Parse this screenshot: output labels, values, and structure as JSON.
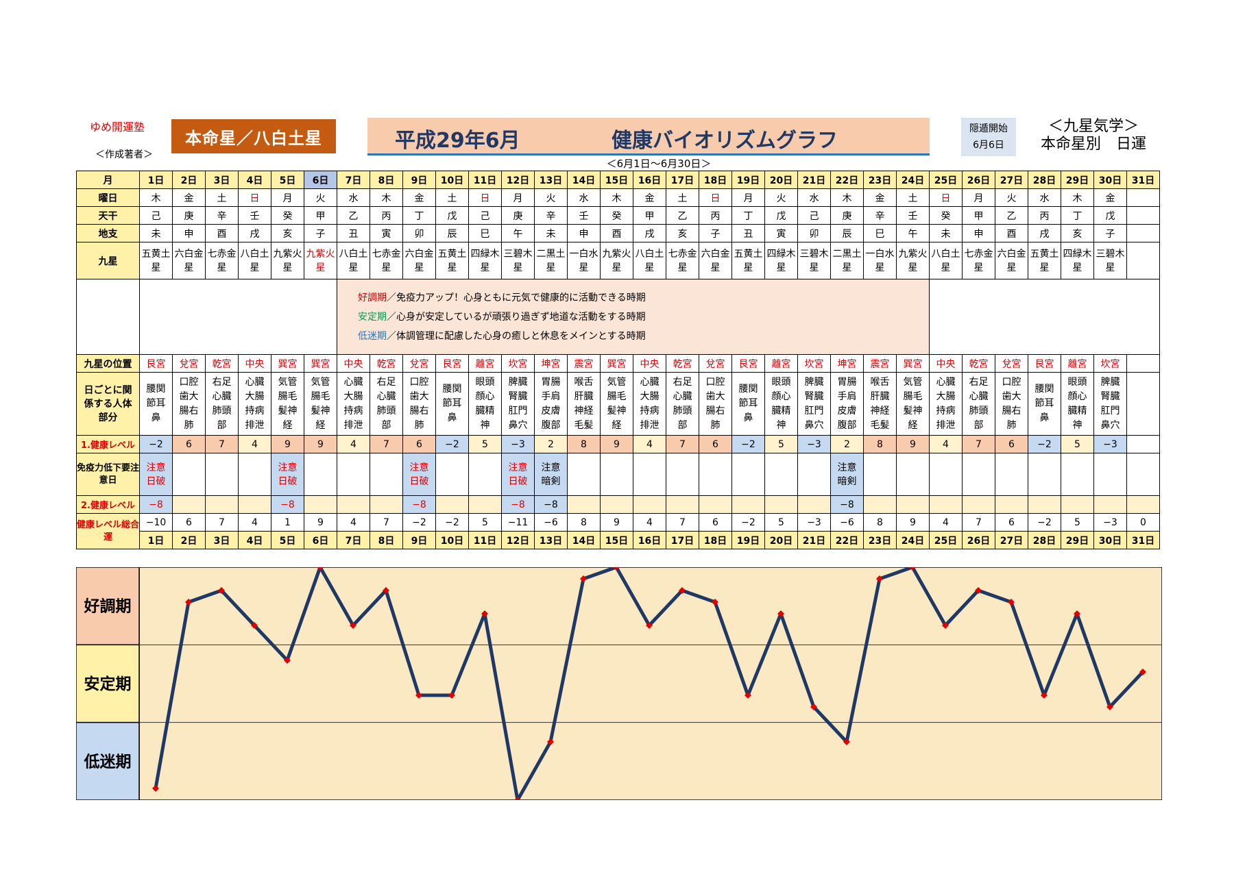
{
  "header": {
    "brand": "ゆめ開運塾",
    "author": "＜作成著者＞",
    "honmei": "本命星／八白土星",
    "title_date": "平成29年6月",
    "title_main": "健康バイオリズムグラフ",
    "period": "＜6月1日～6月30日＞",
    "inton_label": "隠遁開始",
    "inton_date": "6月6日",
    "school_line1": "＜九星気学＞",
    "school_line2": "本命星別　日運"
  },
  "row_labels": {
    "month": "月",
    "weekday": "曜日",
    "tenkan": "天干",
    "chishi": "地支",
    "kyusei": "九星",
    "position": "九星の位置",
    "body": "日ごとに関係する人体部分",
    "level1": "1.健康レベル",
    "warn": "免疫力低下要注意日",
    "level2": "2.健康レベル",
    "total": "健康レベル総合運"
  },
  "legend": [
    {
      "term": "好調期",
      "text": "／免疫力アップ！心身ともに元気で健康的に活動できる時期"
    },
    {
      "term": "安定期",
      "text": "／心身が安定しているが頑張り過ぎず地道な活動をする時期"
    },
    {
      "term": "低迷期",
      "text": "／体調管理に配慮した心身の癒しと休息をメインとする時期"
    }
  ],
  "days": [
    {
      "day": "1日",
      "weekday": "木",
      "tenkan": "己",
      "chishi": "未",
      "star": "五黄土星",
      "pos": "艮宮",
      "body": "腰関節耳鼻",
      "lvl1": "−2",
      "lvl1c": "low",
      "warn": "注意日破",
      "lvl2": "−8",
      "total": "−10"
    },
    {
      "day": "2日",
      "weekday": "金",
      "tenkan": "庚",
      "chishi": "申",
      "star": "六白金星",
      "pos": "兌宮",
      "body": "口腔歯大腸右肺",
      "lvl1": "6",
      "lvl1c": "good",
      "warn": "",
      "lvl2": "",
      "total": "6"
    },
    {
      "day": "3日",
      "weekday": "土",
      "tenkan": "辛",
      "chishi": "酉",
      "star": "七赤金星",
      "pos": "乾宮",
      "body": "右足心臓肺頭部",
      "lvl1": "7",
      "lvl1c": "good",
      "warn": "",
      "lvl2": "",
      "total": "7"
    },
    {
      "day": "4日",
      "weekday": "日",
      "tenkan": "壬",
      "chishi": "戌",
      "star": "八白土星",
      "pos": "中央",
      "body": "心臓大腸持病排泄",
      "lvl1": "4",
      "lvl1c": "mid",
      "warn": "",
      "lvl2": "",
      "total": "4"
    },
    {
      "day": "5日",
      "weekday": "月",
      "tenkan": "癸",
      "chishi": "亥",
      "star": "九紫火星",
      "pos": "巽宮",
      "body": "気管腸毛髪神経",
      "lvl1": "9",
      "lvl1c": "good",
      "warn": "注意日破",
      "lvl2": "−8",
      "total": "1"
    },
    {
      "day": "6日",
      "weekday": "火",
      "tenkan": "甲",
      "chishi": "子",
      "star": "九紫火星",
      "pos": "巽宮",
      "body": "気管腸毛髪神経",
      "lvl1": "9",
      "lvl1c": "good",
      "warn": "",
      "lvl2": "",
      "total": "9"
    },
    {
      "day": "7日",
      "weekday": "水",
      "tenkan": "乙",
      "chishi": "丑",
      "star": "八白土星",
      "pos": "中央",
      "body": "心臓大腸持病排泄",
      "lvl1": "4",
      "lvl1c": "mid",
      "warn": "",
      "lvl2": "",
      "total": "4"
    },
    {
      "day": "8日",
      "weekday": "木",
      "tenkan": "丙",
      "chishi": "寅",
      "star": "七赤金星",
      "pos": "乾宮",
      "body": "右足心臓肺頭部",
      "lvl1": "7",
      "lvl1c": "good",
      "warn": "",
      "lvl2": "",
      "total": "7"
    },
    {
      "day": "9日",
      "weekday": "金",
      "tenkan": "丁",
      "chishi": "卯",
      "star": "六白金星",
      "pos": "兌宮",
      "body": "口腔歯大腸右肺",
      "lvl1": "6",
      "lvl1c": "good",
      "warn": "注意日破",
      "lvl2": "−8",
      "total": "−2"
    },
    {
      "day": "10日",
      "weekday": "土",
      "tenkan": "戊",
      "chishi": "辰",
      "star": "五黄土星",
      "pos": "艮宮",
      "body": "腰関節耳鼻",
      "lvl1": "−2",
      "lvl1c": "low",
      "warn": "",
      "lvl2": "",
      "total": "−2"
    },
    {
      "day": "11日",
      "weekday": "日",
      "tenkan": "己",
      "chishi": "巳",
      "star": "四緑木星",
      "pos": "離宮",
      "body": "眼頭顔心臓精神",
      "lvl1": "5",
      "lvl1c": "mid",
      "warn": "",
      "lvl2": "",
      "total": "5"
    },
    {
      "day": "12日",
      "weekday": "月",
      "tenkan": "庚",
      "chishi": "午",
      "star": "三碧木星",
      "pos": "坎宮",
      "body": "脾臓腎臓肛門鼻穴",
      "lvl1": "−3",
      "lvl1c": "low",
      "warn": "注意日破",
      "lvl2": "−8",
      "total": "−11"
    },
    {
      "day": "13日",
      "weekday": "火",
      "tenkan": "辛",
      "chishi": "未",
      "star": "二黒土星",
      "pos": "坤宮",
      "body": "胃腸手肩皮膚腹部",
      "lvl1": "2",
      "lvl1c": "mid",
      "warn": "注意暗剣",
      "lvl2": "−8",
      "total": "−6"
    },
    {
      "day": "14日",
      "weekday": "水",
      "tenkan": "壬",
      "chishi": "申",
      "star": "一白水星",
      "pos": "震宮",
      "body": "喉舌肝臓神経毛髪",
      "lvl1": "8",
      "lvl1c": "good",
      "warn": "",
      "lvl2": "",
      "total": "8"
    },
    {
      "day": "15日",
      "weekday": "木",
      "tenkan": "癸",
      "chishi": "酉",
      "star": "九紫火星",
      "pos": "巽宮",
      "body": "気管腸毛髪神経",
      "lvl1": "9",
      "lvl1c": "good",
      "warn": "",
      "lvl2": "",
      "total": "9"
    },
    {
      "day": "16日",
      "weekday": "金",
      "tenkan": "甲",
      "chishi": "戌",
      "star": "八白土星",
      "pos": "中央",
      "body": "心臓大腸持病排泄",
      "lvl1": "4",
      "lvl1c": "mid",
      "warn": "",
      "lvl2": "",
      "total": "4"
    },
    {
      "day": "17日",
      "weekday": "土",
      "tenkan": "乙",
      "chishi": "亥",
      "star": "七赤金星",
      "pos": "乾宮",
      "body": "右足心臓肺頭部",
      "lvl1": "7",
      "lvl1c": "good",
      "warn": "",
      "lvl2": "",
      "total": "7"
    },
    {
      "day": "18日",
      "weekday": "日",
      "tenkan": "丙",
      "chishi": "子",
      "star": "六白金星",
      "pos": "兌宮",
      "body": "口腔歯大腸右肺",
      "lvl1": "6",
      "lvl1c": "good",
      "warn": "",
      "lvl2": "",
      "total": "6"
    },
    {
      "day": "19日",
      "weekday": "月",
      "tenkan": "丁",
      "chishi": "丑",
      "star": "五黄土星",
      "pos": "艮宮",
      "body": "腰関節耳鼻",
      "lvl1": "−2",
      "lvl1c": "low",
      "warn": "",
      "lvl2": "",
      "total": "−2"
    },
    {
      "day": "20日",
      "weekday": "火",
      "tenkan": "戊",
      "chishi": "寅",
      "star": "四緑木星",
      "pos": "離宮",
      "body": "眼頭顔心臓精神",
      "lvl1": "5",
      "lvl1c": "mid",
      "warn": "",
      "lvl2": "",
      "total": "5"
    },
    {
      "day": "21日",
      "weekday": "水",
      "tenkan": "己",
      "chishi": "卯",
      "star": "三碧木星",
      "pos": "坎宮",
      "body": "脾臓腎臓肛門鼻穴",
      "lvl1": "−3",
      "lvl1c": "low",
      "warn": "",
      "lvl2": "",
      "total": "−3"
    },
    {
      "day": "22日",
      "weekday": "木",
      "tenkan": "庚",
      "chishi": "辰",
      "star": "二黒土星",
      "pos": "坤宮",
      "body": "胃腸手肩皮膚腹部",
      "lvl1": "2",
      "lvl1c": "mid",
      "warn": "注意暗剣",
      "lvl2": "−8",
      "total": "−6"
    },
    {
      "day": "23日",
      "weekday": "金",
      "tenkan": "辛",
      "chishi": "巳",
      "star": "一白水星",
      "pos": "震宮",
      "body": "喉舌肝臓神経毛髪",
      "lvl1": "8",
      "lvl1c": "good",
      "warn": "",
      "lvl2": "",
      "total": "8"
    },
    {
      "day": "24日",
      "weekday": "土",
      "tenkan": "壬",
      "chishi": "午",
      "star": "九紫火星",
      "pos": "巽宮",
      "body": "気管腸毛髪神経",
      "lvl1": "9",
      "lvl1c": "good",
      "warn": "",
      "lvl2": "",
      "total": "9"
    },
    {
      "day": "25日",
      "weekday": "日",
      "tenkan": "癸",
      "chishi": "未",
      "star": "八白土星",
      "pos": "中央",
      "body": "心臓大腸持病排泄",
      "lvl1": "4",
      "lvl1c": "mid",
      "warn": "",
      "lvl2": "",
      "total": "4"
    },
    {
      "day": "26日",
      "weekday": "月",
      "tenkan": "甲",
      "chishi": "申",
      "star": "七赤金星",
      "pos": "乾宮",
      "body": "右足心臓肺頭部",
      "lvl1": "7",
      "lvl1c": "good",
      "warn": "",
      "lvl2": "",
      "total": "7"
    },
    {
      "day": "27日",
      "weekday": "火",
      "tenkan": "乙",
      "chishi": "酉",
      "star": "六白金星",
      "pos": "兌宮",
      "body": "口腔歯大腸右肺",
      "lvl1": "6",
      "lvl1c": "good",
      "warn": "",
      "lvl2": "",
      "total": "6"
    },
    {
      "day": "28日",
      "weekday": "水",
      "tenkan": "丙",
      "chishi": "戌",
      "star": "五黄土星",
      "pos": "艮宮",
      "body": "腰関節耳鼻",
      "lvl1": "−2",
      "lvl1c": "low",
      "warn": "",
      "lvl2": "",
      "total": "−2"
    },
    {
      "day": "29日",
      "weekday": "木",
      "tenkan": "丁",
      "chishi": "亥",
      "star": "四緑木星",
      "pos": "離宮",
      "body": "眼頭顔心臓精神",
      "lvl1": "5",
      "lvl1c": "mid",
      "warn": "",
      "lvl2": "",
      "total": "5"
    },
    {
      "day": "30日",
      "weekday": "金",
      "tenkan": "戊",
      "chishi": "子",
      "star": "三碧木星",
      "pos": "坎宮",
      "body": "脾臓腎臓肛門鼻穴",
      "lvl1": "−3",
      "lvl1c": "low",
      "warn": "",
      "lvl2": "",
      "total": "−3"
    },
    {
      "day": "31日",
      "weekday": "",
      "tenkan": "",
      "chishi": "",
      "star": "",
      "pos": "",
      "body": "",
      "lvl1": "",
      "lvl1c": "none",
      "warn": "",
      "lvl2": "",
      "total": "0"
    }
  ],
  "highlight_day_index": 5,
  "red_weekdays": [
    "日"
  ],
  "red_star_indices": [
    5
  ],
  "colors": {
    "line": "#1f3864",
    "marker": "#e00000",
    "chart_bg": "#fbe9c4",
    "zone_good": "#f8cbad",
    "zone_stable": "#fff2a8",
    "zone_low": "#c5d9f1",
    "header_yellow": "#fff2a8",
    "honmei_bg": "#c55a11",
    "title_bg": "#f8cbad"
  },
  "chart_data": {
    "type": "line",
    "title": "健康バイオリズムグラフ",
    "categories": [
      "1日",
      "2日",
      "3日",
      "4日",
      "5日",
      "6日",
      "7日",
      "8日",
      "9日",
      "10日",
      "11日",
      "12日",
      "13日",
      "14日",
      "15日",
      "16日",
      "17日",
      "18日",
      "19日",
      "20日",
      "21日",
      "22日",
      "23日",
      "24日",
      "25日",
      "26日",
      "27日",
      "28日",
      "29日",
      "30日",
      "31日"
    ],
    "series": [
      {
        "values": [
          -10,
          6,
          7,
          4,
          1,
          9,
          4,
          7,
          -2,
          -2,
          5,
          -11,
          -6,
          8,
          9,
          4,
          7,
          6,
          -2,
          5,
          -3,
          -6,
          8,
          9,
          4,
          7,
          6,
          -2,
          5,
          -3,
          0
        ]
      }
    ],
    "zones": [
      {
        "label": "好調期"
      },
      {
        "label": "安定期"
      },
      {
        "label": "低迷期"
      }
    ],
    "ylim": [
      -11,
      9
    ],
    "grid": true,
    "legend": "none"
  }
}
